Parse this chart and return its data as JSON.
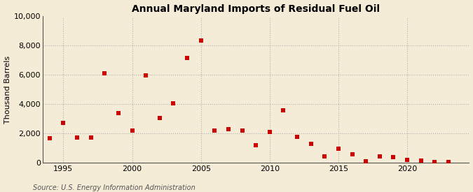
{
  "title": "Annual Maryland Imports of Residual Fuel Oil",
  "ylabel": "Thousand Barrels",
  "source": "Source: U.S. Energy Information Administration",
  "background_color": "#f5ecd7",
  "years": [
    1994,
    1995,
    1996,
    1997,
    1998,
    1999,
    2000,
    2001,
    2002,
    2003,
    2004,
    2005,
    2006,
    2007,
    2008,
    2009,
    2010,
    2011,
    2012,
    2013,
    2014,
    2015,
    2016,
    2017,
    2018,
    2019,
    2020,
    2021,
    2022,
    2023
  ],
  "values": [
    1700,
    2750,
    1750,
    1750,
    6100,
    3400,
    2200,
    5950,
    3050,
    4050,
    7150,
    8350,
    2200,
    2300,
    2200,
    1200,
    2100,
    3600,
    1800,
    1300,
    450,
    950,
    600,
    100,
    450,
    400,
    200,
    150,
    50,
    80
  ],
  "marker_color": "#cc0000",
  "marker_size": 25,
  "ylim": [
    0,
    10000
  ],
  "yticks": [
    0,
    2000,
    4000,
    6000,
    8000,
    10000
  ],
  "xlim": [
    1993.5,
    2024.5
  ],
  "xticks": [
    1995,
    2000,
    2005,
    2010,
    2015,
    2020
  ]
}
